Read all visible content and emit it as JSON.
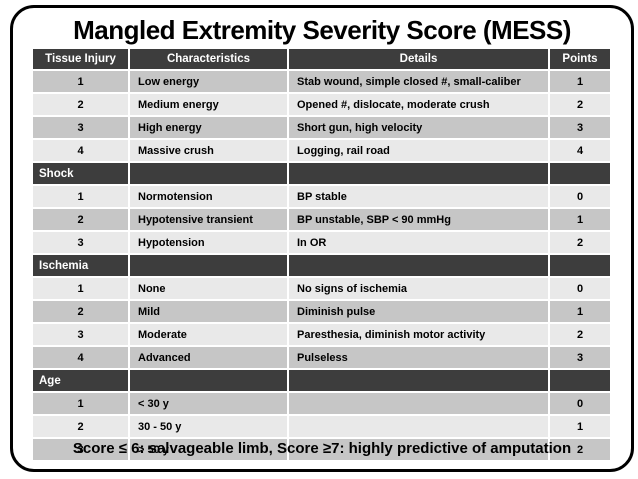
{
  "title": "Mangled Extremity Severity Score (MESS)",
  "table": {
    "columns": [
      "Tissue Injury",
      "Characteristics",
      "Details",
      "Points"
    ],
    "rows": [
      {
        "type": "data",
        "tissue_injury": "1",
        "characteristics": "Low energy",
        "details": "Stab wound, simple closed #, small-caliber",
        "points": "1"
      },
      {
        "type": "data",
        "tissue_injury": "2",
        "characteristics": "Medium energy",
        "details": "Opened #, dislocate, moderate crush",
        "points": "2"
      },
      {
        "type": "data",
        "tissue_injury": "3",
        "characteristics": "High energy",
        "details": "Short gun, high velocity",
        "points": "3"
      },
      {
        "type": "data",
        "tissue_injury": "4",
        "characteristics": "Massive crush",
        "details": "Logging, rail road",
        "points": "4"
      },
      {
        "type": "section",
        "label": "Shock"
      },
      {
        "type": "data",
        "tissue_injury": "1",
        "characteristics": "Normotension",
        "details": "BP stable",
        "points": "0"
      },
      {
        "type": "data",
        "tissue_injury": "2",
        "characteristics": "Hypotensive transient",
        "details": "BP unstable, SBP < 90 mmHg",
        "points": "1"
      },
      {
        "type": "data",
        "tissue_injury": "3",
        "characteristics": "Hypotension",
        "details": "In OR",
        "points": "2"
      },
      {
        "type": "section",
        "label": "Ischemia"
      },
      {
        "type": "data",
        "tissue_injury": "1",
        "characteristics": "None",
        "details": "No signs of ischemia",
        "points": "0"
      },
      {
        "type": "data",
        "tissue_injury": "2",
        "characteristics": "Mild",
        "details": "Diminish pulse",
        "points": "1"
      },
      {
        "type": "data",
        "tissue_injury": "3",
        "characteristics": "Moderate",
        "details": "Paresthesia, diminish motor activity",
        "points": "2"
      },
      {
        "type": "data",
        "tissue_injury": "4",
        "characteristics": "Advanced",
        "details": "Pulseless",
        "points": "3"
      },
      {
        "type": "section",
        "label": "Age"
      },
      {
        "type": "data",
        "tissue_injury": "1",
        "characteristics": "< 30 y",
        "details": "",
        "points": "0"
      },
      {
        "type": "data",
        "tissue_injury": "2",
        "characteristics": "30 - 50 y",
        "details": "",
        "points": "1"
      },
      {
        "type": "data",
        "tissue_injury": "3",
        "characteristics": "> 50 y",
        "details": "",
        "points": "2"
      }
    ]
  },
  "footer": "Score ≤ 6: salvageable limb, Score ≥7: highly predictive of amputation",
  "colors": {
    "header_bg": "#3d3d3d",
    "header_text": "#ffffff",
    "band_medium": "#c6c6c6",
    "band_light": "#e9e9e9",
    "text": "#000000",
    "border": "#000000"
  }
}
